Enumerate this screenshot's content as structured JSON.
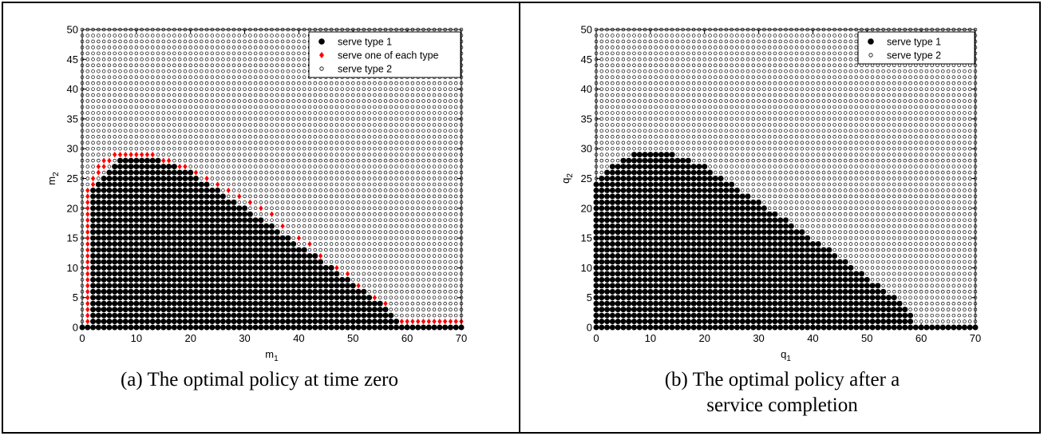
{
  "panels": [
    {
      "caption_lines": [
        "(a) The optimal policy at time zero"
      ],
      "chart_data": {
        "type": "scatter",
        "xlabel": "m",
        "xlabel_subscript": "1",
        "ylabel": "m",
        "ylabel_subscript": "2",
        "xlim": [
          0,
          70
        ],
        "ylim": [
          0,
          50
        ],
        "xticks": [
          0,
          10,
          20,
          30,
          40,
          50,
          60,
          70
        ],
        "yticks": [
          0,
          5,
          10,
          15,
          20,
          25,
          30,
          35,
          40,
          45,
          50
        ],
        "grid": false,
        "legend_position": "top-right",
        "legend": [
          {
            "label": "serve type 1",
            "marker": "filled-circle",
            "color": "#000000"
          },
          {
            "label": "serve one of each type",
            "marker": "diamond",
            "color": "#ff0000"
          },
          {
            "label": "serve type 2",
            "marker": "open-circle",
            "color": "#000000"
          }
        ],
        "lattice": {
          "x_range": [
            0,
            70
          ],
          "y_range": [
            0,
            50
          ],
          "step": 1
        },
        "serve_type1_region_top_y_by_x": [
          0,
          23,
          23,
          24,
          25,
          26,
          27,
          28,
          28,
          28,
          28,
          28,
          28,
          28,
          28,
          27,
          27,
          27,
          26,
          26,
          26,
          25,
          24,
          24,
          23,
          23,
          22,
          21,
          21,
          20,
          20,
          19,
          18,
          18,
          17,
          17,
          16,
          15,
          15,
          14,
          13,
          13,
          12,
          12,
          11,
          10,
          10,
          9,
          8,
          8,
          7,
          6,
          6,
          5,
          4,
          4,
          3,
          2,
          1,
          0,
          0,
          0,
          0,
          0,
          0,
          0,
          0,
          0,
          0,
          0,
          0
        ],
        "serve_one_of_each": {
          "vertical_boundary": {
            "x": 1,
            "y_from": 1,
            "y_to": 23
          },
          "top_boundary": [
            [
              2,
              24
            ],
            [
              2,
              25
            ],
            [
              3,
              26
            ],
            [
              3,
              27
            ],
            [
              4,
              27
            ],
            [
              4,
              28
            ],
            [
              5,
              28
            ],
            [
              6,
              29
            ],
            [
              7,
              29
            ],
            [
              8,
              29
            ],
            [
              9,
              29
            ],
            [
              10,
              29
            ],
            [
              11,
              29
            ],
            [
              12,
              29
            ],
            [
              13,
              29
            ],
            [
              15,
              28
            ],
            [
              16,
              28
            ],
            [
              18,
              27
            ],
            [
              19,
              27
            ],
            [
              21,
              26
            ],
            [
              23,
              25
            ],
            [
              25,
              24
            ],
            [
              27,
              23
            ],
            [
              29,
              22
            ],
            [
              31,
              21
            ],
            [
              33,
              20
            ],
            [
              35,
              19
            ],
            [
              37,
              17
            ],
            [
              40,
              15
            ],
            [
              42,
              14
            ],
            [
              44,
              12
            ],
            [
              47,
              10
            ],
            [
              49,
              9
            ],
            [
              51,
              7
            ],
            [
              54,
              5
            ],
            [
              56,
              4
            ]
          ],
          "floor_row": {
            "y": 1,
            "x_from": 59,
            "x_to": 70
          }
        }
      }
    },
    {
      "caption_lines": [
        "(b) The optimal policy after a",
        "service completion"
      ],
      "chart_data": {
        "type": "scatter",
        "xlabel": "q",
        "xlabel_subscript": "1",
        "ylabel": "q",
        "ylabel_subscript": "2",
        "xlim": [
          0,
          70
        ],
        "ylim": [
          0,
          50
        ],
        "xticks": [
          0,
          10,
          20,
          30,
          40,
          50,
          60,
          70
        ],
        "yticks": [
          0,
          5,
          10,
          15,
          20,
          25,
          30,
          35,
          40,
          45,
          50
        ],
        "grid": false,
        "legend_position": "top-right",
        "legend": [
          {
            "label": "serve type 1",
            "marker": "filled-circle",
            "color": "#000000"
          },
          {
            "label": "serve type 2",
            "marker": "open-circle",
            "color": "#000000"
          }
        ],
        "lattice": {
          "x_range": [
            0,
            70
          ],
          "y_range": [
            0,
            50
          ],
          "step": 1
        },
        "serve_type1_region_top_y_by_x": [
          24,
          25,
          26,
          27,
          27,
          28,
          28,
          29,
          29,
          29,
          29,
          29,
          29,
          29,
          29,
          28,
          28,
          28,
          27,
          27,
          27,
          26,
          25,
          25,
          24,
          24,
          23,
          22,
          22,
          21,
          21,
          20,
          19,
          19,
          18,
          18,
          17,
          16,
          16,
          15,
          14,
          14,
          13,
          13,
          12,
          11,
          11,
          10,
          9,
          9,
          8,
          7,
          7,
          6,
          5,
          5,
          4,
          3,
          2,
          0,
          0,
          0,
          0,
          0,
          0,
          0,
          0,
          0,
          0,
          0,
          0
        ]
      }
    }
  ]
}
